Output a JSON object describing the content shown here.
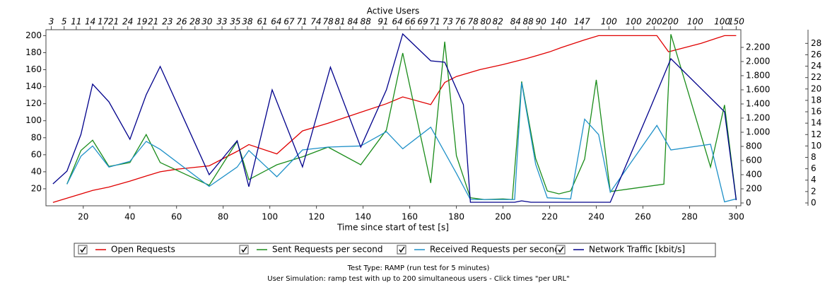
{
  "chart_data": {
    "type": "line",
    "x2_label": "Active Users",
    "x_label": "Time since start of test [s]",
    "xlim": [
      4,
      302
    ],
    "xticks": [
      20,
      40,
      60,
      80,
      100,
      120,
      140,
      160,
      180,
      200,
      220,
      240,
      260,
      280,
      300
    ],
    "x2ticks": [
      {
        "value": 6.3,
        "label": "3"
      },
      {
        "value": 11.8,
        "label": "5"
      },
      {
        "value": 17.0,
        "label": "11"
      },
      {
        "value": 23.0,
        "label": "14"
      },
      {
        "value": 28.5,
        "label": "17"
      },
      {
        "value": 33.0,
        "label": "21"
      },
      {
        "value": 39.1,
        "label": "24"
      },
      {
        "value": 45.2,
        "label": "19"
      },
      {
        "value": 50.0,
        "label": "21"
      },
      {
        "value": 56.1,
        "label": "23"
      },
      {
        "value": 62.2,
        "label": "26"
      },
      {
        "value": 67.9,
        "label": "28"
      },
      {
        "value": 73.1,
        "label": "30"
      },
      {
        "value": 79.5,
        "label": "33"
      },
      {
        "value": 85.2,
        "label": "35"
      },
      {
        "value": 90.4,
        "label": "38"
      },
      {
        "value": 96.8,
        "label": "61"
      },
      {
        "value": 102.8,
        "label": "64"
      },
      {
        "value": 108.3,
        "label": "67"
      },
      {
        "value": 113.8,
        "label": "71"
      },
      {
        "value": 119.8,
        "label": "74"
      },
      {
        "value": 125.0,
        "label": "78"
      },
      {
        "value": 130.1,
        "label": "81"
      },
      {
        "value": 135.6,
        "label": "84"
      },
      {
        "value": 141.1,
        "label": "88"
      },
      {
        "value": 148.6,
        "label": "91"
      },
      {
        "value": 154.7,
        "label": "64"
      },
      {
        "value": 160.2,
        "label": "66"
      },
      {
        "value": 165.6,
        "label": "69"
      },
      {
        "value": 170.8,
        "label": "71"
      },
      {
        "value": 176.3,
        "label": "73"
      },
      {
        "value": 181.7,
        "label": "76"
      },
      {
        "value": 187.2,
        "label": "78"
      },
      {
        "value": 192.6,
        "label": "80"
      },
      {
        "value": 197.8,
        "label": "82"
      },
      {
        "value": 205.4,
        "label": "84"
      },
      {
        "value": 210.8,
        "label": "88"
      },
      {
        "value": 216.3,
        "label": "90"
      },
      {
        "value": 223.9,
        "label": "140"
      },
      {
        "value": 233.9,
        "label": "147"
      },
      {
        "value": 245.4,
        "label": "100"
      },
      {
        "value": 256.0,
        "label": "100"
      },
      {
        "value": 264.8,
        "label": "200"
      },
      {
        "value": 271.8,
        "label": "200"
      },
      {
        "value": 282.4,
        "label": "100"
      },
      {
        "value": 294.0,
        "label": "100"
      },
      {
        "value": 300.0,
        "label": "150"
      }
    ],
    "ylim": [
      0,
      207
    ],
    "yticks": [
      20,
      40,
      60,
      80,
      100,
      120,
      140,
      160,
      180,
      200
    ],
    "y2lim": [
      -40,
      2450
    ],
    "y2ticks": [
      0,
      200,
      400,
      600,
      800,
      {
        "value": 1000,
        "label": "1.000"
      },
      {
        "value": 1200,
        "label": "1.200"
      },
      {
        "value": 1400,
        "label": "1.400"
      },
      {
        "value": 1600,
        "label": "1.600"
      },
      {
        "value": 1800,
        "label": "1.800"
      },
      {
        "value": 2000,
        "label": "2.000"
      },
      {
        "value": 2200,
        "label": "2.200"
      }
    ],
    "y3lim": [
      -0.5,
      30.4
    ],
    "y3ticks": [
      0,
      2,
      4,
      6,
      8,
      10,
      12,
      14,
      16,
      18,
      20,
      22,
      24,
      26,
      28
    ],
    "series": [
      {
        "name": "Open Requests",
        "color": "#e00000",
        "axis": "y",
        "x": [
          7,
          13,
          24,
          31,
          40,
          47,
          53,
          60,
          74,
          86,
          91,
          103,
          114,
          125,
          139,
          150,
          157,
          169,
          175,
          180,
          190,
          200,
          210,
          220,
          225,
          235,
          241,
          266,
          271,
          285,
          295,
          300
        ],
        "values": [
          4,
          9,
          18,
          22,
          29,
          35,
          40,
          43,
          47,
          64,
          72,
          61,
          88,
          97,
          110,
          120,
          128,
          119,
          145,
          152,
          160,
          166,
          173,
          181,
          186,
          195,
          200,
          200,
          181,
          191,
          200,
          200
        ]
      },
      {
        "name": "Sent Requests per second",
        "color": "#1a8c1a",
        "axis": "y3",
        "x": [
          13,
          19,
          24,
          31,
          40,
          47,
          53,
          74,
          86,
          91,
          103,
          114,
          125,
          139,
          150,
          157,
          169,
          175,
          180,
          186,
          192,
          200,
          204,
          208,
          214,
          219,
          224,
          229,
          235,
          240,
          246,
          269,
          272,
          289,
          295,
          300
        ],
        "values": [
          3.3,
          9.2,
          11.0,
          6.4,
          7.1,
          12.0,
          7.1,
          3.1,
          10.8,
          4.1,
          6.7,
          8.1,
          9.8,
          6.7,
          12.8,
          26.3,
          3.5,
          28.3,
          8.3,
          0.9,
          0.6,
          0.7,
          0.6,
          21.3,
          7.8,
          2.1,
          1.6,
          2.1,
          7.7,
          21.6,
          2.0,
          3.3,
          29.6,
          6.3,
          17.2,
          0.6
        ]
      },
      {
        "name": "Received Requests per second",
        "color": "#1e90c8",
        "axis": "y3",
        "x": [
          13,
          19,
          24,
          31,
          40,
          47,
          53,
          74,
          86,
          91,
          103,
          114,
          125,
          139,
          150,
          157,
          169,
          180,
          186,
          200,
          205,
          208,
          214,
          219,
          229,
          235,
          241,
          246,
          266,
          272,
          289,
          295,
          300
        ],
        "values": [
          3.3,
          8.2,
          10.0,
          6.3,
          7.3,
          10.8,
          9.4,
          2.9,
          6.3,
          9.2,
          4.6,
          9.3,
          9.8,
          10.0,
          12.5,
          9.5,
          13.3,
          5.2,
          0.6,
          0.6,
          0.6,
          21.1,
          6.8,
          0.9,
          0.7,
          14.7,
          12.0,
          1.9,
          13.6,
          9.3,
          10.3,
          0.2,
          0.7
        ]
      },
      {
        "name": "Network Traffic [kbit/s]",
        "color": "#00008b",
        "axis": "y2",
        "x": [
          7,
          13,
          19,
          24,
          31,
          40,
          47,
          53,
          74,
          86,
          91,
          101,
          114,
          126,
          139,
          150,
          157,
          169,
          175,
          183,
          186,
          205,
          208,
          212,
          246,
          263,
          272,
          295,
          300
        ],
        "values": [
          270,
          450,
          970,
          1680,
          1430,
          900,
          1530,
          1930,
          400,
          880,
          230,
          1600,
          510,
          1920,
          790,
          1600,
          2390,
          2010,
          1990,
          1390,
          10,
          10,
          30,
          10,
          10,
          1330,
          2040,
          1290,
          40
        ]
      }
    ],
    "legend": "bottom",
    "notes": [
      "Test Type: RAMP (run test for 5 minutes)",
      "User Simulation: ramp test with up to 200 simultaneous users - Click times \"per URL\""
    ]
  }
}
